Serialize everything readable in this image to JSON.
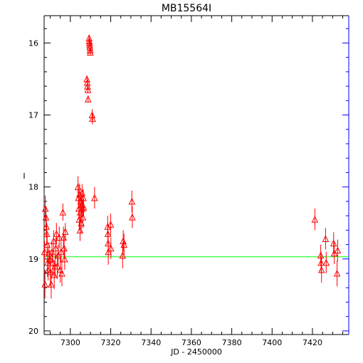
{
  "chart_data": {
    "type": "scatter",
    "title": "MB15564I",
    "xlabel": "JD - 2450000",
    "ylabel": "I",
    "xlim": [
      7287,
      7438
    ],
    "ylim": [
      20.05,
      15.62
    ],
    "y_inverted": true,
    "x_ticks": [
      7300,
      7320,
      7340,
      7360,
      7380,
      7400,
      7420
    ],
    "y_ticks": [
      16,
      17,
      18,
      19,
      20
    ],
    "marker": "open-triangle",
    "marker_color": "#ff0000",
    "baseline": {
      "y": 18.97,
      "color": "#00ff00"
    },
    "frame_right_color": "#0000ff",
    "series": [
      {
        "points": [
          {
            "x": 7287.2,
            "y": 18.9,
            "err": 0.15
          },
          {
            "x": 7287.4,
            "y": 19.35,
            "err": 0.2
          },
          {
            "x": 7287.6,
            "y": 18.3,
            "err": 0.18
          },
          {
            "x": 7287.9,
            "y": 18.42,
            "err": 0.15
          },
          {
            "x": 7288.1,
            "y": 18.55,
            "err": 0.15
          },
          {
            "x": 7288.3,
            "y": 18.65,
            "err": 0.15
          },
          {
            "x": 7288.5,
            "y": 18.8,
            "err": 0.15
          },
          {
            "x": 7288.7,
            "y": 19.05,
            "err": 0.2
          },
          {
            "x": 7289.0,
            "y": 19.15,
            "err": 0.15
          },
          {
            "x": 7289.4,
            "y": 18.92,
            "err": 0.15
          },
          {
            "x": 7289.8,
            "y": 19.0,
            "err": 0.12
          },
          {
            "x": 7290.1,
            "y": 19.18,
            "err": 0.2
          },
          {
            "x": 7290.5,
            "y": 19.35,
            "err": 0.2
          },
          {
            "x": 7290.9,
            "y": 18.9,
            "err": 0.15
          },
          {
            "x": 7291.3,
            "y": 19.05,
            "err": 0.15
          },
          {
            "x": 7291.7,
            "y": 18.75,
            "err": 0.15
          },
          {
            "x": 7292.0,
            "y": 19.22,
            "err": 0.2
          },
          {
            "x": 7292.4,
            "y": 19.1,
            "err": 0.15
          },
          {
            "x": 7292.8,
            "y": 18.85,
            "err": 0.15
          },
          {
            "x": 7293.1,
            "y": 18.65,
            "err": 0.15
          },
          {
            "x": 7293.5,
            "y": 19.1,
            "err": 0.18
          },
          {
            "x": 7294.0,
            "y": 18.95,
            "err": 0.15
          },
          {
            "x": 7294.5,
            "y": 18.7,
            "err": 0.15
          },
          {
            "x": 7295.0,
            "y": 19.15,
            "err": 0.18
          },
          {
            "x": 7295.4,
            "y": 18.9,
            "err": 0.15
          },
          {
            "x": 7295.8,
            "y": 19.2,
            "err": 0.18
          },
          {
            "x": 7296.3,
            "y": 18.35,
            "err": 0.12
          },
          {
            "x": 7296.6,
            "y": 18.7,
            "err": 0.15
          },
          {
            "x": 7296.9,
            "y": 18.85,
            "err": 0.15
          },
          {
            "x": 7297.2,
            "y": 19.0,
            "err": 0.15
          },
          {
            "x": 7297.5,
            "y": 18.62,
            "err": 0.12
          },
          {
            "x": 7303.8,
            "y": 18.0,
            "err": 0.15
          },
          {
            "x": 7304.0,
            "y": 18.15,
            "err": 0.15
          },
          {
            "x": 7304.2,
            "y": 18.3,
            "err": 0.15
          },
          {
            "x": 7304.4,
            "y": 18.45,
            "err": 0.15
          },
          {
            "x": 7304.6,
            "y": 18.1,
            "err": 0.15
          },
          {
            "x": 7304.8,
            "y": 18.6,
            "err": 0.15
          },
          {
            "x": 7305.0,
            "y": 18.35,
            "err": 0.12
          },
          {
            "x": 7305.2,
            "y": 18.2,
            "err": 0.12
          },
          {
            "x": 7305.4,
            "y": 18.5,
            "err": 0.15
          },
          {
            "x": 7305.6,
            "y": 18.25,
            "err": 0.12
          },
          {
            "x": 7305.8,
            "y": 18.08,
            "err": 0.12
          },
          {
            "x": 7306.0,
            "y": 18.3,
            "err": 0.12
          },
          {
            "x": 7306.2,
            "y": 18.42,
            "err": 0.15
          },
          {
            "x": 7306.4,
            "y": 18.15,
            "err": 0.12
          },
          {
            "x": 7306.6,
            "y": 18.28,
            "err": 0.12
          },
          {
            "x": 7308.2,
            "y": 16.5,
            "err": 0.05
          },
          {
            "x": 7308.4,
            "y": 16.55,
            "err": 0.05
          },
          {
            "x": 7308.5,
            "y": 16.6,
            "err": 0.05
          },
          {
            "x": 7308.7,
            "y": 16.65,
            "err": 0.05
          },
          {
            "x": 7308.8,
            "y": 16.78,
            "err": 0.05
          },
          {
            "x": 7309.3,
            "y": 15.93,
            "err": 0.04
          },
          {
            "x": 7309.4,
            "y": 15.97,
            "err": 0.04
          },
          {
            "x": 7309.5,
            "y": 16.0,
            "err": 0.04
          },
          {
            "x": 7309.6,
            "y": 16.03,
            "err": 0.04
          },
          {
            "x": 7309.7,
            "y": 16.06,
            "err": 0.04
          },
          {
            "x": 7309.8,
            "y": 16.1,
            "err": 0.04
          },
          {
            "x": 7309.9,
            "y": 16.13,
            "err": 0.04
          },
          {
            "x": 7310.8,
            "y": 17.0,
            "err": 0.08
          },
          {
            "x": 7311.0,
            "y": 17.05,
            "err": 0.08
          },
          {
            "x": 7312.0,
            "y": 18.15,
            "err": 0.15
          },
          {
            "x": 7318.5,
            "y": 18.55,
            "err": 0.15
          },
          {
            "x": 7318.6,
            "y": 18.65,
            "err": 0.15
          },
          {
            "x": 7318.7,
            "y": 18.78,
            "err": 0.15
          },
          {
            "x": 7318.8,
            "y": 18.9,
            "err": 0.18
          },
          {
            "x": 7320.0,
            "y": 18.52,
            "err": 0.15
          },
          {
            "x": 7320.1,
            "y": 18.85,
            "err": 0.15
          },
          {
            "x": 7325.9,
            "y": 18.95,
            "err": 0.18
          },
          {
            "x": 7326.2,
            "y": 18.75,
            "err": 0.15
          },
          {
            "x": 7326.6,
            "y": 18.8,
            "err": 0.15
          },
          {
            "x": 7330.5,
            "y": 18.2,
            "err": 0.15
          },
          {
            "x": 7330.7,
            "y": 18.42,
            "err": 0.15
          },
          {
            "x": 7421.2,
            "y": 18.45,
            "err": 0.15
          },
          {
            "x": 7424.1,
            "y": 18.95,
            "err": 0.15
          },
          {
            "x": 7424.3,
            "y": 19.05,
            "err": 0.15
          },
          {
            "x": 7424.5,
            "y": 19.15,
            "err": 0.18
          },
          {
            "x": 7426.5,
            "y": 18.72,
            "err": 0.15
          },
          {
            "x": 7426.8,
            "y": 19.05,
            "err": 0.15
          },
          {
            "x": 7430.5,
            "y": 18.78,
            "err": 0.15
          },
          {
            "x": 7430.8,
            "y": 18.92,
            "err": 0.15
          },
          {
            "x": 7432.2,
            "y": 19.2,
            "err": 0.18
          },
          {
            "x": 7432.5,
            "y": 18.88,
            "err": 0.15
          }
        ]
      }
    ]
  }
}
